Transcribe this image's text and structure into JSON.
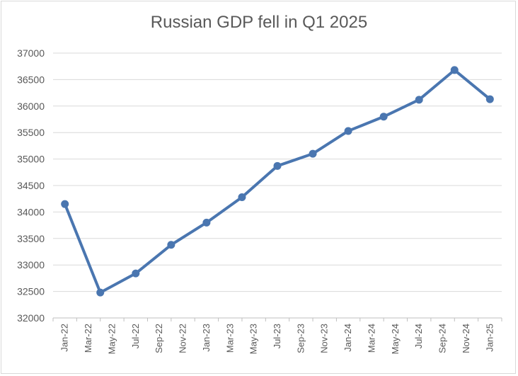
{
  "chart_data": {
    "type": "line",
    "title": "Russian GDP fell in Q1 2025",
    "xlabel": "",
    "ylabel": "",
    "ylim": [
      32000,
      37000
    ],
    "yticks": [
      32000,
      32500,
      33000,
      33500,
      34000,
      34500,
      35000,
      35500,
      36000,
      36500,
      37000
    ],
    "categories": [
      "Jan-22",
      "Mar-22",
      "May-22",
      "Jul-22",
      "Sep-22",
      "Nov-22",
      "Jan-23",
      "Mar-23",
      "May-23",
      "Jul-23",
      "Sep-23",
      "Nov-23",
      "Jan-24",
      "Mar-24",
      "May-24",
      "Jul-24",
      "Sep-24",
      "Nov-24",
      "Jan-25"
    ],
    "series": [
      {
        "x": [
          "Jan-22",
          "Apr-22",
          "Jul-22",
          "Oct-22",
          "Jan-23",
          "Apr-23",
          "Jul-23",
          "Oct-23",
          "Jan-24",
          "Apr-24",
          "Jul-24",
          "Oct-24",
          "Jan-25"
        ],
        "values": [
          34150,
          32480,
          32840,
          33380,
          33800,
          34280,
          34870,
          35100,
          35530,
          35800,
          36120,
          36680,
          36130
        ]
      }
    ],
    "grid": true,
    "legend": "none",
    "colors": {
      "line": "#4a76b0",
      "grid": "#d9d9d9",
      "text": "#595959"
    }
  }
}
